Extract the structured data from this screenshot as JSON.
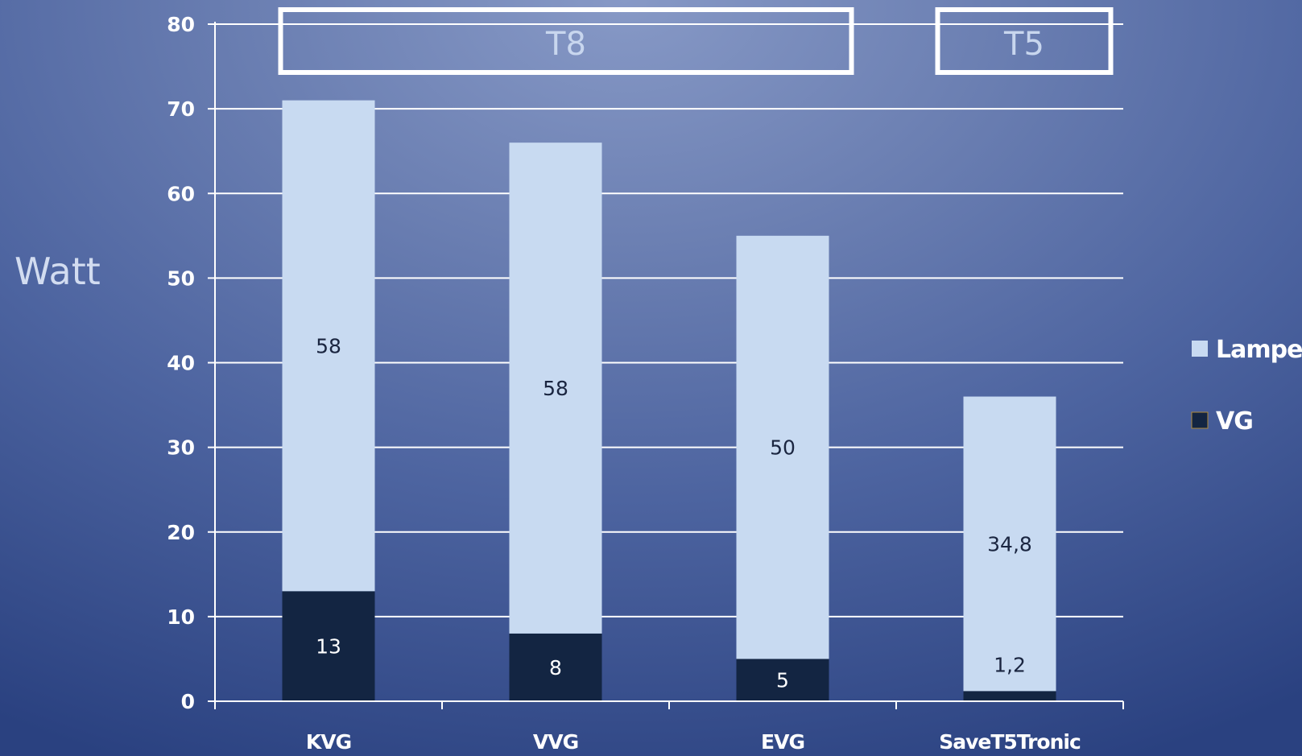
{
  "chart_data": {
    "type": "bar",
    "stacked": true,
    "categories": [
      "KVG",
      "VVG",
      "EVG",
      "SaveT5Tronic"
    ],
    "series": [
      {
        "name": "VG",
        "values": [
          13,
          8,
          5,
          1.2
        ],
        "labels": [
          "13",
          "8",
          "5",
          "1,2"
        ],
        "color": "#132542",
        "label_color": "#ffffff"
      },
      {
        "name": "Lampe",
        "values": [
          58,
          58,
          50,
          34.8
        ],
        "labels": [
          "58",
          "58",
          "50",
          "34,8"
        ],
        "color": "#c8daf1",
        "label_color": "#1a2540"
      }
    ],
    "ylabel": "Watt",
    "ylim": [
      0,
      80
    ],
    "yticks": [
      0,
      10,
      20,
      30,
      40,
      50,
      60,
      70,
      80
    ],
    "grid": true,
    "legend": {
      "placement": "right",
      "entries": [
        "Lampe",
        "VG"
      ]
    },
    "groups": [
      {
        "label": "T8",
        "categories": [
          "KVG",
          "VVG",
          "EVG"
        ]
      },
      {
        "label": "T5",
        "categories": [
          "SaveT5Tronic"
        ]
      }
    ]
  }
}
